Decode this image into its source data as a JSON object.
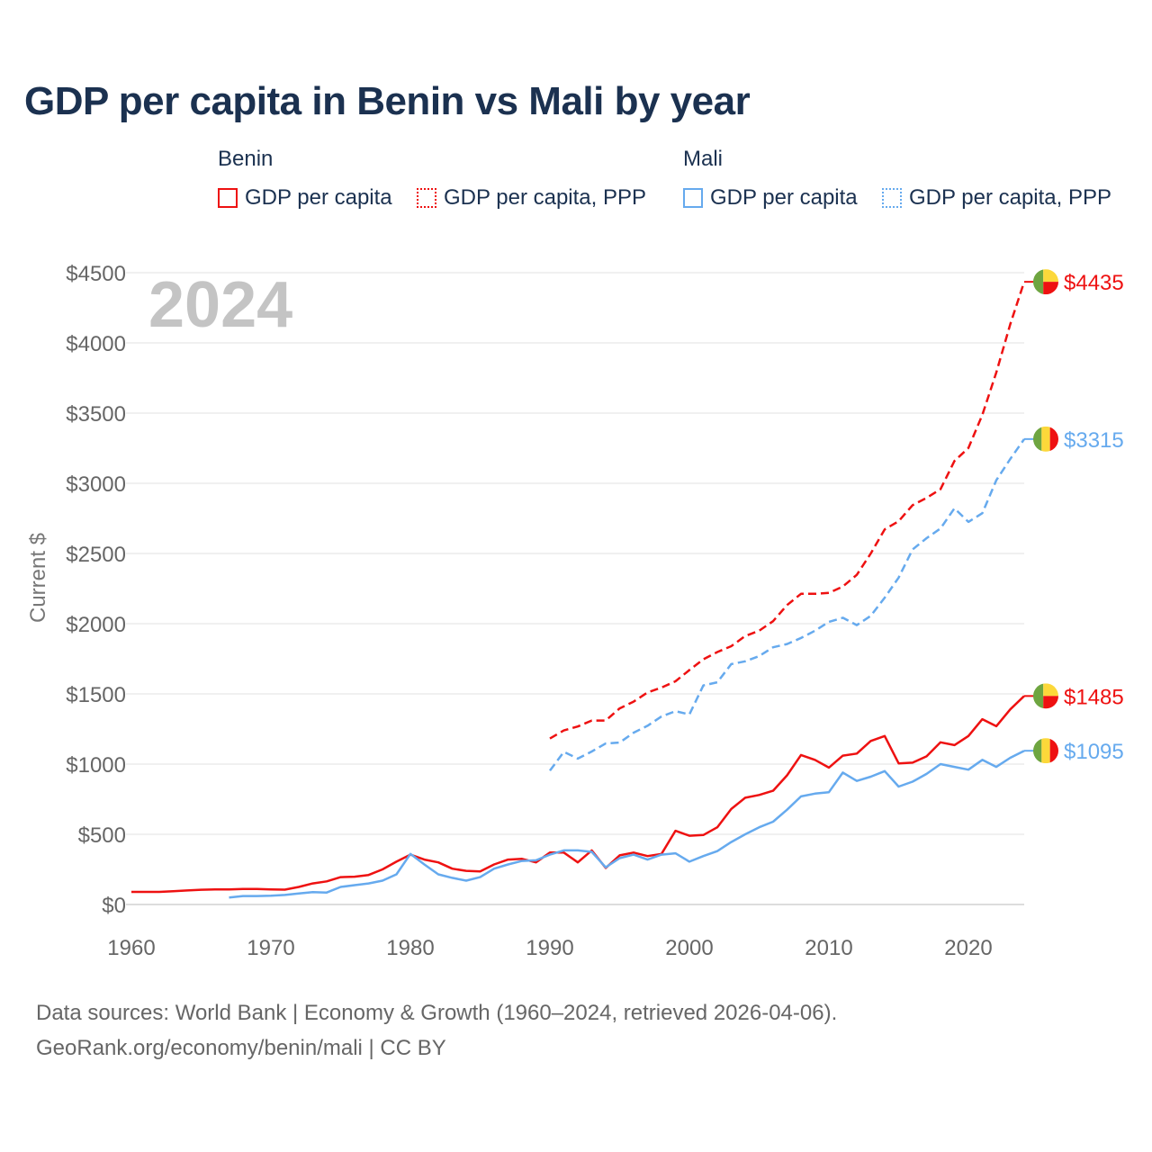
{
  "title": "GDP per capita in Benin vs Mali by year",
  "legend": {
    "groups": [
      {
        "name": "Benin",
        "color": "#ee1111",
        "items": [
          "GDP per capita",
          "GDP per capita, PPP"
        ]
      },
      {
        "name": "Mali",
        "color": "#66aaee",
        "items": [
          "GDP per capita",
          "GDP per capita, PPP"
        ]
      }
    ]
  },
  "footer": {
    "line1": "Data sources: World Bank | Economy & Growth (1960–2024, retrieved 2026-04-06).",
    "line2": "GeoRank.org/economy/benin/mali | CC BY"
  },
  "chart_data": {
    "type": "line",
    "title": "GDP per capita in Benin vs Mali by year",
    "xlabel": "",
    "ylabel": "Current $",
    "year_label": "2024",
    "xlim": [
      1960,
      2024
    ],
    "ylim": [
      0,
      4500
    ],
    "xticks": [
      1960,
      1970,
      1980,
      1990,
      2000,
      2010,
      2020
    ],
    "yticks": [
      0,
      500,
      1000,
      1500,
      2000,
      2500,
      3000,
      3500,
      4000,
      4500
    ],
    "ytick_labels": [
      "$0",
      "$500",
      "$1000",
      "$1500",
      "$2000",
      "$2500",
      "$3000",
      "$3500",
      "$4000",
      "$4500"
    ],
    "grid": true,
    "series": [
      {
        "name": "Benin GDP per capita",
        "country": "Benin",
        "style": "solid",
        "color": "#ee1111",
        "start": 1960,
        "end_label": "$1485",
        "flag": "benin",
        "values": [
          90,
          90,
          90,
          95,
          100,
          105,
          108,
          108,
          110,
          110,
          108,
          106,
          125,
          150,
          165,
          195,
          198,
          210,
          250,
          305,
          355,
          320,
          300,
          255,
          240,
          235,
          285,
          320,
          325,
          300,
          370,
          370,
          300,
          385,
          260,
          350,
          370,
          345,
          360,
          525,
          490,
          495,
          550,
          680,
          760,
          780,
          810,
          920,
          1065,
          1030,
          975,
          1060,
          1075,
          1165,
          1200,
          1005,
          1010,
          1055,
          1155,
          1135,
          1200,
          1320,
          1270,
          1390,
          1485
        ]
      },
      {
        "name": "Benin GDP per capita, PPP",
        "country": "Benin",
        "style": "dashed",
        "color": "#ee1111",
        "start": 1990,
        "end_label": "$4435",
        "flag": "benin",
        "values": [
          1182,
          1240,
          1268,
          1310,
          1310,
          1397,
          1445,
          1510,
          1545,
          1590,
          1670,
          1746,
          1798,
          1840,
          1912,
          1950,
          2018,
          2133,
          2213,
          2213,
          2219,
          2265,
          2348,
          2500,
          2672,
          2730,
          2844,
          2896,
          2958,
          3159,
          3251,
          3488,
          3789,
          4133,
          4435
        ]
      },
      {
        "name": "Mali GDP per capita",
        "country": "Mali",
        "style": "solid",
        "color": "#66aaee",
        "start": 1967,
        "end_label": "$1095",
        "flag": "mali",
        "values": [
          50,
          60,
          60,
          62,
          68,
          78,
          88,
          85,
          125,
          138,
          150,
          170,
          215,
          360,
          285,
          215,
          190,
          170,
          195,
          255,
          285,
          310,
          315,
          355,
          385,
          385,
          375,
          265,
          330,
          355,
          320,
          355,
          365,
          305,
          345,
          380,
          445,
          500,
          550,
          590,
          675,
          770,
          790,
          800,
          940,
          880,
          910,
          950,
          840,
          875,
          930,
          1000,
          980,
          960,
          1030,
          980,
          1045,
          1095
        ]
      },
      {
        "name": "Mali GDP per capita, PPP",
        "country": "Mali",
        "style": "dashed",
        "color": "#66aaee",
        "start": 1990,
        "end_label": "$3315",
        "flag": "mali",
        "values": [
          953,
          1087,
          1039,
          1090,
          1147,
          1153,
          1224,
          1273,
          1339,
          1377,
          1354,
          1560,
          1583,
          1712,
          1732,
          1769,
          1832,
          1855,
          1898,
          1950,
          2013,
          2042,
          1990,
          2056,
          2185,
          2328,
          2529,
          2609,
          2678,
          2822,
          2725,
          2787,
          3022,
          3173,
          3315
        ]
      }
    ]
  }
}
